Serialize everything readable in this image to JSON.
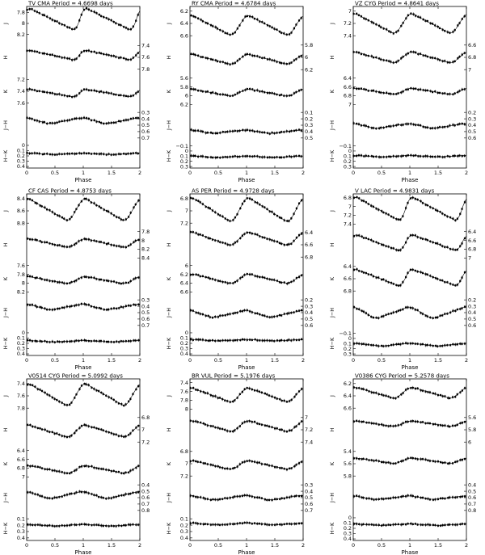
{
  "figure": {
    "bands": [
      "J",
      "H",
      "K",
      "J−H",
      "H−K"
    ],
    "x_axis_label": "Phase",
    "x_ticks": [
      "0",
      "0.5",
      "1",
      "1.5",
      "2"
    ]
  },
  "chart_data": [
    {
      "type": "scatter",
      "star": "TV CMA",
      "period": "4.6698",
      "title": "TV CMA   Period =  4.6698 days",
      "xlim": [
        0,
        2
      ],
      "axes": [
        {
          "band": "J",
          "side": "left",
          "ticks": [
            "7.8",
            "8",
            "8.2"
          ],
          "range": [
            7.72,
            8.28
          ],
          "mean": 7.92,
          "amp": 0.22,
          "min_phase": 0.88
        },
        {
          "band": "H",
          "side": "right",
          "ticks": [
            "7.4",
            "7.6",
            "7.8"
          ],
          "range": [
            7.34,
            7.86
          ],
          "mean": 7.56,
          "amp": 0.09,
          "min_phase": 0.87
        },
        {
          "band": "K",
          "side": "left",
          "ticks": [
            "7.2",
            "7.4",
            "7.6"
          ],
          "range": [
            7.14,
            7.66
          ],
          "mean": 7.43,
          "amp": 0.07,
          "min_phase": 0.87
        },
        {
          "band": "J−H",
          "side": "right",
          "ticks": [
            "0.3",
            "0.4",
            "0.5",
            "0.6",
            "0.7"
          ],
          "range": [
            0.26,
            0.74
          ],
          "mean": 0.43,
          "amp": 0.05,
          "min_phase": 0.4
        },
        {
          "band": "H−K",
          "side": "left",
          "ticks": [
            "0",
            "0.1",
            "0.2",
            "0.3",
            "0.4"
          ],
          "range": [
            -0.03,
            0.43
          ],
          "mean": 0.16,
          "amp": 0.015,
          "min_phase": 0.5
        }
      ]
    },
    {
      "type": "scatter",
      "star": "RY CMA",
      "period": "4.6784",
      "title": "RY CMA   Period =  4.6784 days",
      "xlim": [
        0,
        2
      ],
      "axes": [
        {
          "band": "J",
          "side": "left",
          "ticks": [
            "6.2",
            "6.4",
            "6.6"
          ],
          "range": [
            6.15,
            6.65
          ],
          "mean": 6.43,
          "amp": 0.18,
          "min_phase": 0.75
        },
        {
          "band": "H",
          "side": "right",
          "ticks": [
            "5.8",
            "6",
            "6.2"
          ],
          "range": [
            5.75,
            6.25
          ],
          "mean": 6.03,
          "amp": 0.09,
          "min_phase": 0.75
        },
        {
          "band": "K",
          "side": "left",
          "ticks": [
            "5.6",
            "5.8",
            "6",
            "6.2"
          ],
          "range": [
            5.55,
            6.25
          ],
          "mean": 5.93,
          "amp": 0.09,
          "min_phase": 0.75
        },
        {
          "band": "J−H",
          "side": "right",
          "ticks": [
            "0.1",
            "0.2",
            "0.3",
            "0.4",
            "0.5"
          ],
          "range": [
            0.06,
            0.54
          ],
          "mean": 0.4,
          "amp": 0.03,
          "min_phase": 0.4
        },
        {
          "band": "H−K",
          "side": "left",
          "ticks": [
            "−0.1",
            "0",
            "0.1",
            "0.2",
            "0.3"
          ],
          "range": [
            -0.14,
            0.33
          ],
          "mean": 0.11,
          "amp": 0.015,
          "min_phase": 0.5
        }
      ]
    },
    {
      "type": "scatter",
      "star": "VZ CYG",
      "period": "4.8641",
      "title": "VZ CYG   Period =  4.8641 days",
      "xlim": [
        0,
        2
      ],
      "axes": [
        {
          "band": "J",
          "side": "left",
          "ticks": [
            "7",
            "7.2",
            "7.4"
          ],
          "range": [
            6.95,
            7.45
          ],
          "mean": 7.2,
          "amp": 0.18,
          "min_phase": 0.75
        },
        {
          "band": "H",
          "side": "right",
          "ticks": [
            "6.6",
            "6.8",
            "7"
          ],
          "range": [
            6.55,
            7.05
          ],
          "mean": 6.8,
          "amp": 0.1,
          "min_phase": 0.75
        },
        {
          "band": "K",
          "side": "left",
          "ticks": [
            "6.4",
            "6.6",
            "6.8",
            "7"
          ],
          "range": [
            6.35,
            7.05
          ],
          "mean": 6.7,
          "amp": 0.08,
          "min_phase": 0.75
        },
        {
          "band": "J−H",
          "side": "right",
          "ticks": [
            "0.2",
            "0.3",
            "0.4",
            "0.5",
            "0.6"
          ],
          "range": [
            0.16,
            0.64
          ],
          "mean": 0.41,
          "amp": 0.04,
          "min_phase": 0.4
        },
        {
          "band": "H−K",
          "side": "left",
          "ticks": [
            "−0.1",
            "0",
            "0.1",
            "0.2",
            "0.3"
          ],
          "range": [
            -0.14,
            0.33
          ],
          "mean": 0.1,
          "amp": 0.015,
          "min_phase": 0.5
        }
      ]
    },
    {
      "type": "scatter",
      "star": "CF CAS",
      "period": "4.8753",
      "title": "CF CAS   Period =  4.8753 days",
      "xlim": [
        0,
        2
      ],
      "axes": [
        {
          "band": "J",
          "side": "left",
          "ticks": [
            "8.4",
            "8.6",
            "8.8"
          ],
          "range": [
            8.35,
            8.85
          ],
          "mean": 8.58,
          "amp": 0.2,
          "min_phase": 0.75
        },
        {
          "band": "H",
          "side": "right",
          "ticks": [
            "7.8",
            "8",
            "8.2",
            "8.4"
          ],
          "range": [
            7.75,
            8.45
          ],
          "mean": 8.06,
          "amp": 0.11,
          "min_phase": 0.75
        },
        {
          "band": "K",
          "side": "left",
          "ticks": [
            "7.6",
            "7.8",
            "8",
            "8.2"
          ],
          "range": [
            7.55,
            8.25
          ],
          "mean": 7.93,
          "amp": 0.09,
          "min_phase": 0.75
        },
        {
          "band": "J−H",
          "side": "right",
          "ticks": [
            "0.3",
            "0.4",
            "0.5",
            "0.6",
            "0.7"
          ],
          "range": [
            0.26,
            0.74
          ],
          "mean": 0.41,
          "amp": 0.05,
          "min_phase": 0.4
        },
        {
          "band": "H−K",
          "side": "left",
          "ticks": [
            "0",
            "0.1",
            "0.2",
            "0.3",
            "0.4"
          ],
          "range": [
            -0.03,
            0.43
          ],
          "mean": 0.16,
          "amp": 0.015,
          "min_phase": 0.5
        }
      ]
    },
    {
      "type": "scatter",
      "star": "AS PER",
      "period": "4.9728",
      "title": "AS PER   Period =  4.9728 days",
      "xlim": [
        0,
        2
      ],
      "axes": [
        {
          "band": "J",
          "side": "left",
          "ticks": [
            "6.8",
            "7",
            "7.2"
          ],
          "range": [
            6.75,
            7.25
          ],
          "mean": 6.98,
          "amp": 0.22,
          "min_phase": 0.75
        },
        {
          "band": "H",
          "side": "right",
          "ticks": [
            "6.4",
            "6.6",
            "6.8"
          ],
          "range": [
            6.35,
            6.85
          ],
          "mean": 6.5,
          "amp": 0.12,
          "min_phase": 0.75
        },
        {
          "band": "K",
          "side": "left",
          "ticks": [
            "6",
            "6.2",
            "6.4",
            "6.6"
          ],
          "range": [
            5.95,
            6.65
          ],
          "mean": 6.3,
          "amp": 0.12,
          "min_phase": 0.75
        },
        {
          "band": "J−H",
          "side": "right",
          "ticks": [
            "0.2",
            "0.3",
            "0.4",
            "0.5",
            "0.6"
          ],
          "range": [
            0.16,
            0.64
          ],
          "mean": 0.42,
          "amp": 0.06,
          "min_phase": 0.4
        },
        {
          "band": "H−K",
          "side": "left",
          "ticks": [
            "0",
            "0.1",
            "0.2",
            "0.3",
            "0.4"
          ],
          "range": [
            -0.03,
            0.43
          ],
          "mean": 0.14,
          "amp": 0.015,
          "min_phase": 0.5
        }
      ]
    },
    {
      "type": "scatter",
      "star": "V LAC",
      "period": "4.9831",
      "title": "V LAC   Period =  4.9831 days",
      "xlim": [
        0,
        2
      ],
      "axes": [
        {
          "band": "J",
          "side": "left",
          "ticks": [
            "6.8",
            "7",
            "7.2",
            "7.4"
          ],
          "range": [
            6.75,
            7.45
          ],
          "mean": 7.05,
          "amp": 0.3,
          "min_phase": 0.85
        },
        {
          "band": "H",
          "side": "right",
          "ticks": [
            "6.4",
            "6.6",
            "6.8",
            "7"
          ],
          "range": [
            6.35,
            7.05
          ],
          "mean": 6.65,
          "amp": 0.2,
          "min_phase": 0.85
        },
        {
          "band": "K",
          "side": "left",
          "ticks": [
            "6.4",
            "6.6",
            "6.8"
          ],
          "range": [
            6.35,
            6.85
          ],
          "mean": 6.58,
          "amp": 0.15,
          "min_phase": 0.85
        },
        {
          "band": "J−H",
          "side": "right",
          "ticks": [
            "0.2",
            "0.3",
            "0.4",
            "0.5",
            "0.6"
          ],
          "range": [
            0.16,
            0.64
          ],
          "mean": 0.4,
          "amp": 0.1,
          "min_phase": 0.4
        },
        {
          "band": "H−K",
          "side": "left",
          "ticks": [
            "−0.1",
            "0",
            "0.1",
            "0.2",
            "0.3"
          ],
          "range": [
            -0.14,
            0.33
          ],
          "mean": 0.12,
          "amp": 0.03,
          "min_phase": 0.5
        }
      ]
    },
    {
      "type": "scatter",
      "star": "V0514 CYG",
      "period": "5.0992",
      "title": "V0514 CYG   Period =  5.0992 days",
      "xlim": [
        0,
        2
      ],
      "axes": [
        {
          "band": "J",
          "side": "left",
          "ticks": [
            "7.4",
            "7.6",
            "7.8"
          ],
          "range": [
            7.35,
            7.85
          ],
          "mean": 7.58,
          "amp": 0.2,
          "min_phase": 0.75
        },
        {
          "band": "H",
          "side": "right",
          "ticks": [
            "6.8",
            "7",
            "7.2"
          ],
          "range": [
            6.75,
            7.25
          ],
          "mean": 7.02,
          "amp": 0.11,
          "min_phase": 0.75
        },
        {
          "band": "K",
          "side": "left",
          "ticks": [
            "6.4",
            "6.6",
            "6.8",
            "7"
          ],
          "range": [
            6.35,
            7.05
          ],
          "mean": 6.83,
          "amp": 0.1,
          "min_phase": 0.75
        },
        {
          "band": "J−H",
          "side": "right",
          "ticks": [
            "0.4",
            "0.5",
            "0.6",
            "0.7",
            "0.8"
          ],
          "range": [
            0.36,
            0.84
          ],
          "mean": 0.56,
          "amp": 0.06,
          "min_phase": 0.4
        },
        {
          "band": "H−K",
          "side": "left",
          "ticks": [
            "0.1",
            "0.2",
            "0.3",
            "0.4"
          ],
          "range": [
            0.06,
            0.44
          ],
          "mean": 0.2,
          "amp": 0.015,
          "min_phase": 0.5
        }
      ]
    },
    {
      "type": "scatter",
      "star": "BR VUL",
      "period": "5.1976",
      "title": "BR VUL   Period =  5.1976 days",
      "xlim": [
        0,
        2
      ],
      "axes": [
        {
          "band": "J",
          "side": "left",
          "ticks": [
            "7.4",
            "7.6",
            "7.8",
            "8"
          ],
          "range": [
            7.35,
            8.05
          ],
          "mean": 7.68,
          "amp": 0.18,
          "min_phase": 0.75
        },
        {
          "band": "H",
          "side": "right",
          "ticks": [
            "7",
            "7.2",
            "7.4"
          ],
          "range": [
            6.95,
            7.45
          ],
          "mean": 7.14,
          "amp": 0.1,
          "min_phase": 0.75
        },
        {
          "band": "K",
          "side": "left",
          "ticks": [
            "6.8",
            "7",
            "7.2"
          ],
          "range": [
            6.75,
            7.25
          ],
          "mean": 7.02,
          "amp": 0.08,
          "min_phase": 0.75
        },
        {
          "band": "J−H",
          "side": "right",
          "ticks": [
            "0.3",
            "0.4",
            "0.5",
            "0.6",
            "0.7"
          ],
          "range": [
            0.26,
            0.74
          ],
          "mean": 0.5,
          "amp": 0.04,
          "min_phase": 0.4
        },
        {
          "band": "H−K",
          "side": "left",
          "ticks": [
            "0.1",
            "0.2",
            "0.3",
            "0.4"
          ],
          "range": [
            0.06,
            0.44
          ],
          "mean": 0.18,
          "amp": 0.015,
          "min_phase": 0.5
        }
      ]
    },
    {
      "type": "scatter",
      "star": "V0386 CYG",
      "period": "5.2578",
      "title": "V0386 CYG   Period =  5.2578 days",
      "xlim": [
        0,
        2
      ],
      "axes": [
        {
          "band": "J",
          "side": "left",
          "ticks": [
            "6.2",
            "6.4",
            "6.6"
          ],
          "range": [
            6.15,
            6.65
          ],
          "mean": 6.35,
          "amp": 0.1,
          "min_phase": 0.75
        },
        {
          "band": "H",
          "side": "right",
          "ticks": [
            "5.6",
            "5.8",
            "6"
          ],
          "range": [
            5.55,
            6.05
          ],
          "mean": 5.7,
          "amp": 0.05,
          "min_phase": 0.75
        },
        {
          "band": "K",
          "side": "left",
          "ticks": [
            "5.4",
            "5.6",
            "5.8"
          ],
          "range": [
            5.35,
            5.85
          ],
          "mean": 5.55,
          "amp": 0.05,
          "min_phase": 0.75
        },
        {
          "band": "J−H",
          "side": "right",
          "ticks": [
            "0.4",
            "0.5",
            "0.6",
            "0.7",
            "0.8"
          ],
          "range": [
            0.36,
            0.84
          ],
          "mean": 0.6,
          "amp": 0.03,
          "min_phase": 0.4
        },
        {
          "band": "H−K",
          "side": "left",
          "ticks": [
            "0",
            "0.1",
            "0.2",
            "0.3",
            "0.4"
          ],
          "range": [
            -0.03,
            0.43
          ],
          "mean": 0.13,
          "amp": 0.015,
          "min_phase": 0.5
        }
      ]
    }
  ]
}
